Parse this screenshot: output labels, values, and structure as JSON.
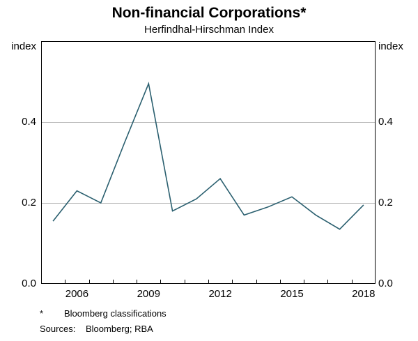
{
  "header": {
    "title": "Non-financial Corporations*",
    "subtitle": "Herfindhal-Hirschman Index"
  },
  "axes": {
    "left_unit": "index",
    "right_unit": "index",
    "y_ticks": [
      {
        "label": "0.0",
        "value": 0.0
      },
      {
        "label": "0.2",
        "value": 0.2
      },
      {
        "label": "0.4",
        "value": 0.4
      }
    ],
    "x_ticks": [
      {
        "label": "2006",
        "year": 2006
      },
      {
        "label": "2009",
        "year": 2009
      },
      {
        "label": "2012",
        "year": 2012
      },
      {
        "label": "2015",
        "year": 2015
      },
      {
        "label": "2018",
        "year": 2018
      }
    ]
  },
  "footer": {
    "footnote_marker": "*",
    "footnote_text": "Bloomberg classifications",
    "sources_label": "Sources:",
    "sources_text": "Bloomberg; RBA"
  },
  "chart_data": {
    "type": "line",
    "title": "Non-financial Corporations*",
    "subtitle": "Herfindhal-Hirschman Index",
    "ylabel": "index",
    "ylim": [
      0,
      0.6
    ],
    "xlim": [
      2005,
      2019
    ],
    "grid_y": [
      0.2,
      0.4
    ],
    "grid_on": true,
    "legend_position": "none",
    "x": [
      2005,
      2006,
      2007,
      2008,
      2009,
      2010,
      2011,
      2012,
      2013,
      2014,
      2015,
      2016,
      2017,
      2018
    ],
    "values": [
      0.155,
      0.23,
      0.2,
      0.35,
      0.495,
      0.18,
      0.21,
      0.26,
      0.17,
      0.19,
      0.215,
      0.17,
      0.135,
      0.195
    ],
    "line_color": "#2a5f6f",
    "grid_color": "#b5b5b5",
    "border_color": "#000000"
  }
}
